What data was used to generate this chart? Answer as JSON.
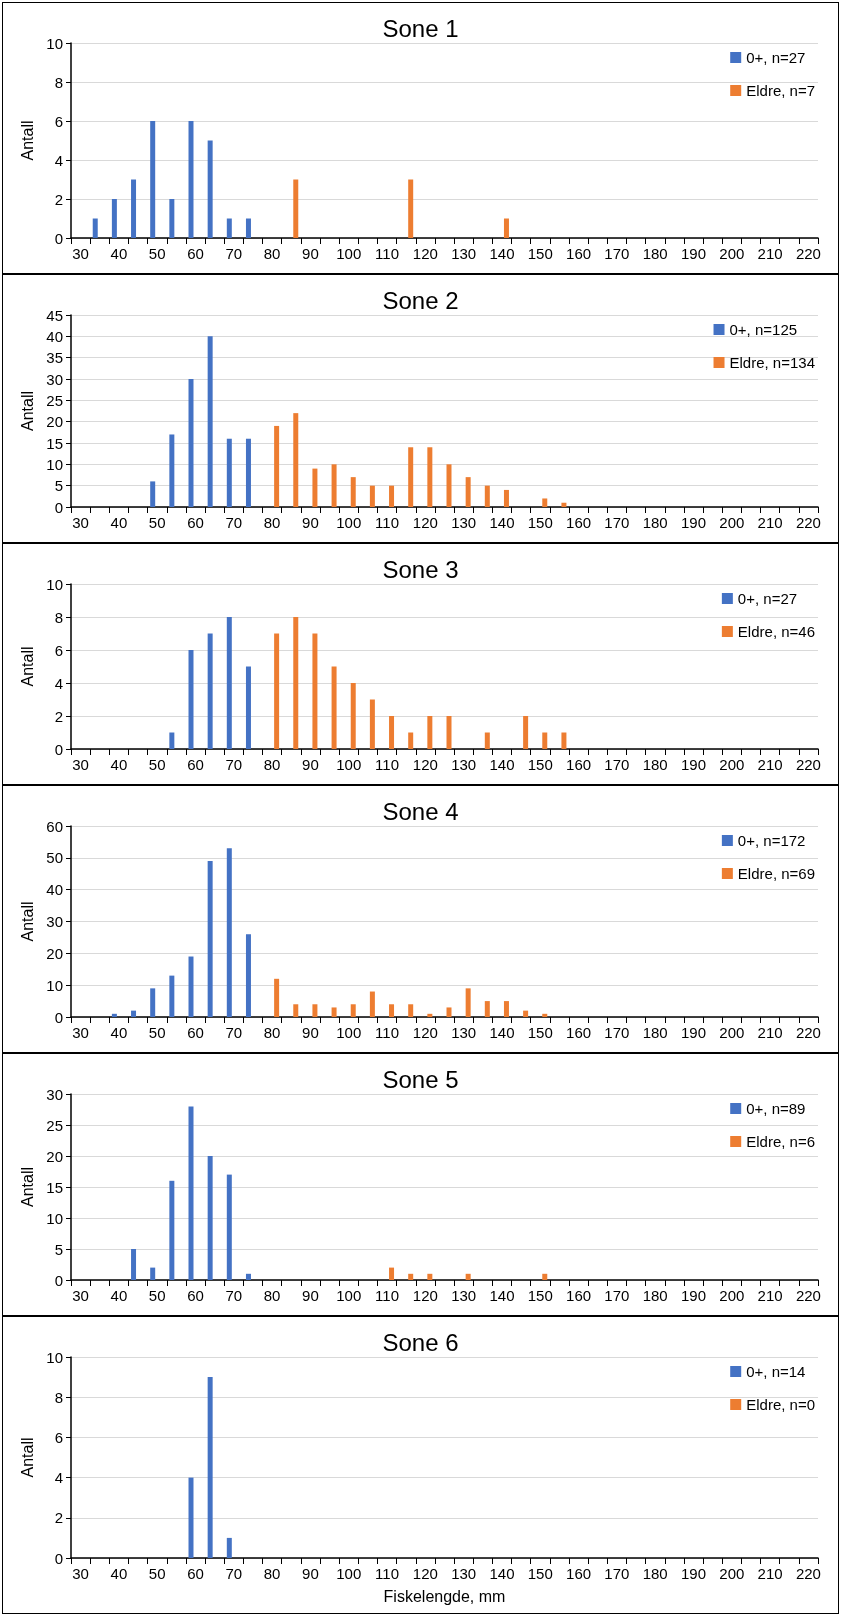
{
  "chart_data": [
    {
      "type": "bar",
      "title": "Sone 1",
      "ylabel": "Antall",
      "categories": [
        "30",
        null,
        "40",
        null,
        "50",
        null,
        "60",
        null,
        "70",
        null,
        "80",
        null,
        "90",
        null,
        "100",
        null,
        "110",
        null,
        "120",
        null,
        "130",
        null,
        "140",
        null,
        "150",
        null,
        "160",
        null,
        "170",
        null,
        "180",
        null,
        "190",
        null,
        "200",
        null,
        "210",
        null,
        "220"
      ],
      "ylim": [
        0,
        10
      ],
      "yticks": [
        0,
        2,
        4,
        6,
        8,
        10
      ],
      "grid": "y",
      "legend": "top right",
      "series": [
        {
          "name": "0+, n=27",
          "color": "#4472c4",
          "values": [
            0,
            1,
            2,
            3,
            6,
            2,
            6,
            5,
            1,
            1,
            0,
            0,
            0,
            0,
            0,
            0,
            0,
            0,
            0,
            0,
            0,
            0,
            0,
            0,
            0,
            0,
            0,
            0,
            0,
            0,
            0,
            0,
            0,
            0,
            0,
            0,
            0,
            0,
            0
          ]
        },
        {
          "name": "Eldre, n=7",
          "color": "#ed7d31",
          "values": [
            0,
            0,
            0,
            0,
            0,
            0,
            0,
            0,
            0,
            0,
            0,
            3,
            0,
            0,
            0,
            0,
            0,
            3,
            0,
            0,
            0,
            0,
            1,
            0,
            0,
            0,
            0,
            0,
            0,
            0,
            0,
            0,
            0,
            0,
            0,
            0,
            0,
            0,
            0
          ]
        }
      ]
    },
    {
      "type": "bar",
      "title": "Sone 2",
      "ylabel": "Antall",
      "categories": [
        "30",
        null,
        "40",
        null,
        "50",
        null,
        "60",
        null,
        "70",
        null,
        "80",
        null,
        "90",
        null,
        "100",
        null,
        "110",
        null,
        "120",
        null,
        "130",
        null,
        "140",
        null,
        "150",
        null,
        "160",
        null,
        "170",
        null,
        "180",
        null,
        "190",
        null,
        "200",
        null,
        "210",
        null,
        "220"
      ],
      "ylim": [
        0,
        45
      ],
      "yticks": [
        0,
        5,
        10,
        15,
        20,
        25,
        30,
        35,
        40,
        45
      ],
      "grid": "y",
      "legend": "top right",
      "series": [
        {
          "name": "0+, n=125",
          "color": "#4472c4",
          "values": [
            0,
            0,
            0,
            0,
            6,
            17,
            30,
            40,
            16,
            16,
            0,
            0,
            0,
            0,
            0,
            0,
            0,
            0,
            0,
            0,
            0,
            0,
            0,
            0,
            0,
            0,
            0,
            0,
            0,
            0,
            0,
            0,
            0,
            0,
            0,
            0,
            0,
            0,
            0
          ]
        },
        {
          "name": "Eldre, n=134",
          "color": "#ed7d31",
          "values": [
            0,
            0,
            0,
            0,
            0,
            0,
            0,
            0,
            0,
            0,
            19,
            22,
            9,
            10,
            7,
            5,
            5,
            14,
            14,
            10,
            7,
            5,
            4,
            0,
            2,
            1,
            0,
            0,
            0,
            0,
            0,
            0,
            0,
            0,
            0,
            0,
            0,
            0,
            0
          ]
        }
      ]
    },
    {
      "type": "bar",
      "title": "Sone 3",
      "ylabel": "Antall",
      "categories": [
        "30",
        null,
        "40",
        null,
        "50",
        null,
        "60",
        null,
        "70",
        null,
        "80",
        null,
        "90",
        null,
        "100",
        null,
        "110",
        null,
        "120",
        null,
        "130",
        null,
        "140",
        null,
        "150",
        null,
        "160",
        null,
        "170",
        null,
        "180",
        null,
        "190",
        null,
        "200",
        null,
        "210",
        null,
        "220"
      ],
      "ylim": [
        0,
        10
      ],
      "yticks": [
        0,
        2,
        4,
        6,
        8,
        10
      ],
      "grid": "y",
      "legend": "top right",
      "series": [
        {
          "name": "0+, n=27",
          "color": "#4472c4",
          "values": [
            0,
            0,
            0,
            0,
            0,
            1,
            6,
            7,
            8,
            5,
            0,
            0,
            0,
            0,
            0,
            0,
            0,
            0,
            0,
            0,
            0,
            0,
            0,
            0,
            0,
            0,
            0,
            0,
            0,
            0,
            0,
            0,
            0,
            0,
            0,
            0,
            0,
            0,
            0
          ]
        },
        {
          "name": "Eldre, n=46",
          "color": "#ed7d31",
          "values": [
            0,
            0,
            0,
            0,
            0,
            0,
            0,
            0,
            0,
            0,
            7,
            8,
            7,
            5,
            4,
            3,
            2,
            1,
            2,
            2,
            0,
            1,
            0,
            2,
            1,
            1,
            0,
            0,
            0,
            0,
            0,
            0,
            0,
            0,
            0,
            0,
            0,
            0,
            0
          ]
        }
      ]
    },
    {
      "type": "bar",
      "title": "Sone 4",
      "ylabel": "Antall",
      "categories": [
        "30",
        null,
        "40",
        null,
        "50",
        null,
        "60",
        null,
        "70",
        null,
        "80",
        null,
        "90",
        null,
        "100",
        null,
        "110",
        null,
        "120",
        null,
        "130",
        null,
        "140",
        null,
        "150",
        null,
        "160",
        null,
        "170",
        null,
        "180",
        null,
        "190",
        null,
        "200",
        null,
        "210",
        null,
        "220"
      ],
      "ylim": [
        0,
        60
      ],
      "yticks": [
        0,
        10,
        20,
        30,
        40,
        50,
        60
      ],
      "grid": "y",
      "legend": "top right",
      "series": [
        {
          "name": "0+, n=172",
          "color": "#4472c4",
          "values": [
            0,
            0,
            1,
            2,
            9,
            13,
            19,
            49,
            53,
            26,
            0,
            0,
            0,
            0,
            0,
            0,
            0,
            0,
            0,
            0,
            0,
            0,
            0,
            0,
            0,
            0,
            0,
            0,
            0,
            0,
            0,
            0,
            0,
            0,
            0,
            0,
            0,
            0,
            0
          ]
        },
        {
          "name": "Eldre, n=69",
          "color": "#ed7d31",
          "values": [
            0,
            0,
            0,
            0,
            0,
            0,
            0,
            0,
            0,
            0,
            12,
            4,
            4,
            3,
            4,
            8,
            4,
            4,
            1,
            3,
            9,
            5,
            5,
            2,
            1,
            0,
            0,
            0,
            0,
            0,
            0,
            0,
            0,
            0,
            0,
            0,
            0,
            0,
            0
          ]
        }
      ]
    },
    {
      "type": "bar",
      "title": "Sone 5",
      "ylabel": "Antall",
      "categories": [
        "30",
        null,
        "40",
        null,
        "50",
        null,
        "60",
        null,
        "70",
        null,
        "80",
        null,
        "90",
        null,
        "100",
        null,
        "110",
        null,
        "120",
        null,
        "130",
        null,
        "140",
        null,
        "150",
        null,
        "160",
        null,
        "170",
        null,
        "180",
        null,
        "190",
        null,
        "200",
        null,
        "210",
        null,
        "220"
      ],
      "ylim": [
        0,
        30
      ],
      "yticks": [
        0,
        5,
        10,
        15,
        20,
        25,
        30
      ],
      "grid": "y",
      "legend": "top right",
      "series": [
        {
          "name": "0+, n=89",
          "color": "#4472c4",
          "values": [
            0,
            0,
            0,
            5,
            2,
            16,
            28,
            20,
            17,
            1,
            0,
            0,
            0,
            0,
            0,
            0,
            0,
            0,
            0,
            0,
            0,
            0,
            0,
            0,
            0,
            0,
            0,
            0,
            0,
            0,
            0,
            0,
            0,
            0,
            0,
            0,
            0,
            0,
            0
          ]
        },
        {
          "name": "Eldre, n=6",
          "color": "#ed7d31",
          "values": [
            0,
            0,
            0,
            0,
            0,
            0,
            0,
            0,
            0,
            0,
            0,
            0,
            0,
            0,
            0,
            0,
            2,
            1,
            1,
            0,
            1,
            0,
            0,
            0,
            1,
            0,
            0,
            0,
            0,
            0,
            0,
            0,
            0,
            0,
            0,
            0,
            0,
            0,
            0
          ]
        }
      ]
    },
    {
      "type": "bar",
      "title": "Sone 6",
      "ylabel": "Antall",
      "xlabel": "Fiskelengde, mm",
      "categories": [
        "30",
        null,
        "40",
        null,
        "50",
        null,
        "60",
        null,
        "70",
        null,
        "80",
        null,
        "90",
        null,
        "100",
        null,
        "110",
        null,
        "120",
        null,
        "130",
        null,
        "140",
        null,
        "150",
        null,
        "160",
        null,
        "170",
        null,
        "180",
        null,
        "190",
        null,
        "200",
        null,
        "210",
        null,
        "220"
      ],
      "ylim": [
        0,
        10
      ],
      "yticks": [
        0,
        2,
        4,
        6,
        8,
        10
      ],
      "grid": "y",
      "legend": "top right",
      "series": [
        {
          "name": "0+, n=14",
          "color": "#4472c4",
          "values": [
            0,
            0,
            0,
            0,
            0,
            0,
            4,
            9,
            1,
            0,
            0,
            0,
            0,
            0,
            0,
            0,
            0,
            0,
            0,
            0,
            0,
            0,
            0,
            0,
            0,
            0,
            0,
            0,
            0,
            0,
            0,
            0,
            0,
            0,
            0,
            0,
            0,
            0,
            0
          ]
        },
        {
          "name": "Eldre, n=0",
          "color": "#ed7d31",
          "values": [
            0,
            0,
            0,
            0,
            0,
            0,
            0,
            0,
            0,
            0,
            0,
            0,
            0,
            0,
            0,
            0,
            0,
            0,
            0,
            0,
            0,
            0,
            0,
            0,
            0,
            0,
            0,
            0,
            0,
            0,
            0,
            0,
            0,
            0,
            0,
            0,
            0,
            0,
            0
          ]
        }
      ]
    }
  ]
}
